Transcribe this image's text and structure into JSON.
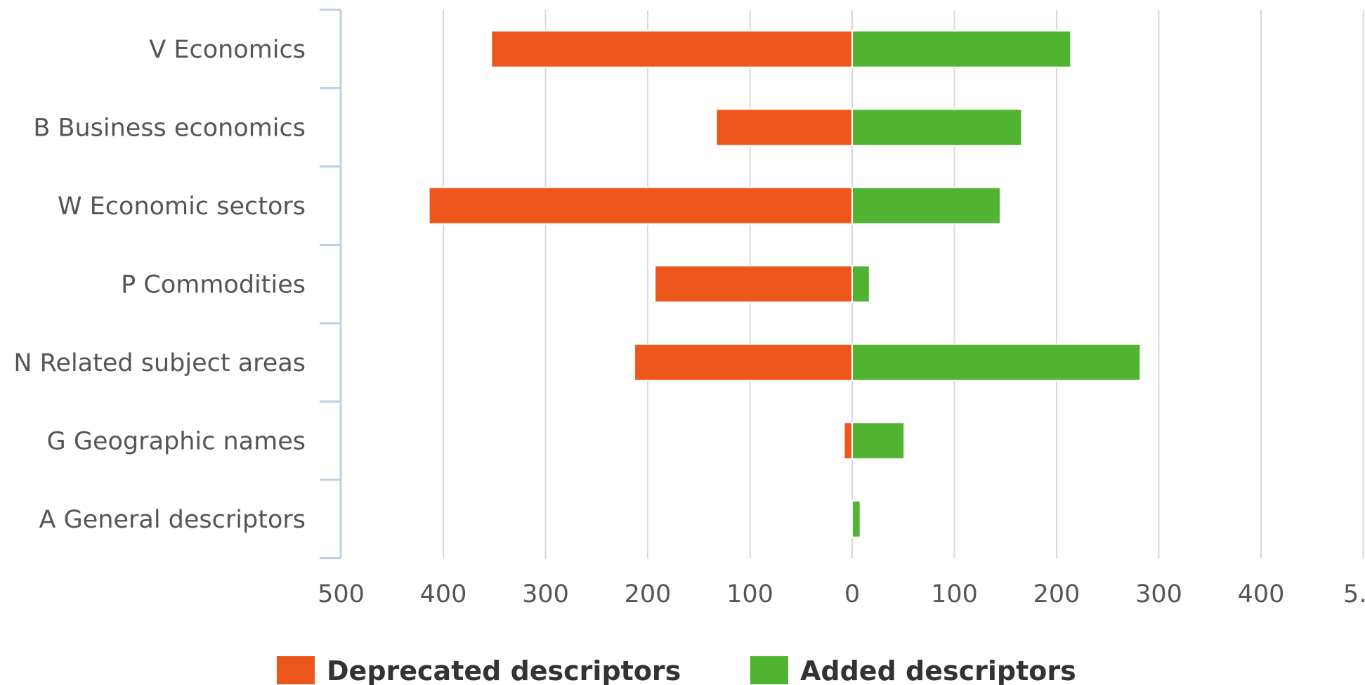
{
  "chart_data": {
    "type": "bar",
    "orientation": "horizontal",
    "diverging": true,
    "categories": [
      "V Economics",
      "B Business economics",
      "W Economic sectors",
      "P Commodities",
      "N Related subject areas",
      "G Geographic names",
      "A General descriptors"
    ],
    "series": [
      {
        "name": "Deprecated descriptors",
        "color": "#ed561b",
        "direction": "left",
        "values": [
          353,
          133,
          414,
          193,
          213,
          8,
          0
        ]
      },
      {
        "name": "Added descriptors",
        "color": "#50b432",
        "direction": "right",
        "values": [
          214,
          166,
          145,
          17,
          282,
          51,
          8
        ]
      }
    ],
    "x_ticks": [
      "500",
      "400",
      "300",
      "200",
      "100",
      "0",
      "100",
      "200",
      "300",
      "400",
      "5…"
    ],
    "xlim": [
      -500,
      500
    ],
    "grid": true,
    "legend_position": "bottom"
  }
}
